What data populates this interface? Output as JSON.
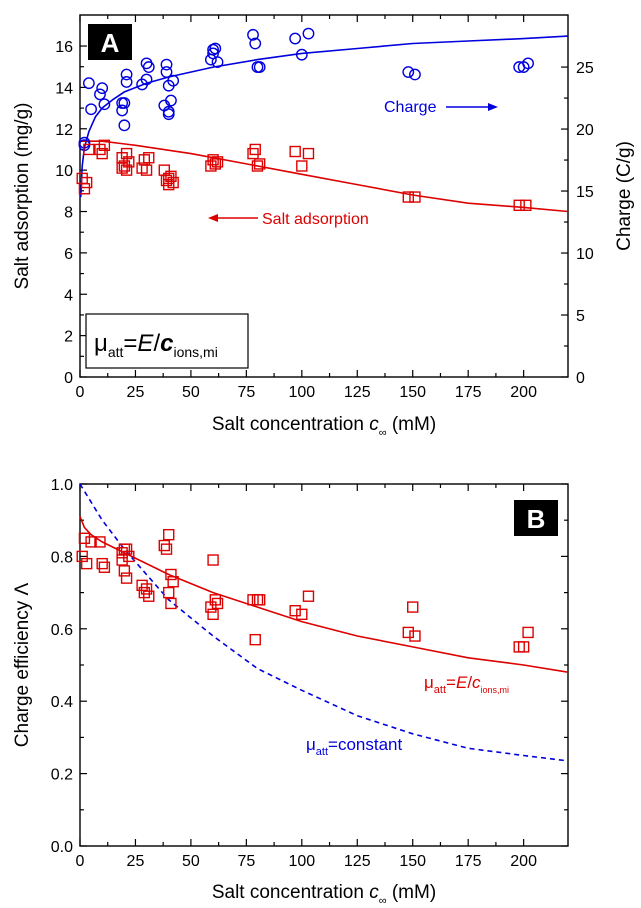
{
  "chart_data": [
    {
      "type": "scatter",
      "panel": "A",
      "xlabel": "Salt concentration c∞ (mM)",
      "ylabel": "Salt adsorption (mg/g)",
      "y2label": "Charge (C/g)",
      "xlim": [
        0,
        220
      ],
      "ylim": [
        0,
        17.5
      ],
      "y2lim": [
        0,
        29.2
      ],
      "xticks": [
        0,
        25,
        50,
        75,
        100,
        125,
        150,
        175,
        200
      ],
      "yticks": [
        0,
        2,
        4,
        6,
        8,
        10,
        12,
        14,
        16
      ],
      "y2ticks": [
        0,
        5,
        10,
        15,
        20,
        25
      ],
      "grid": false,
      "series": [
        {
          "name": "Charge",
          "axis": "right",
          "marker": "circle",
          "color": "#0000dd",
          "points": [
            [
              2,
              18.7
            ],
            [
              2,
              18.9
            ],
            [
              4,
              23.7
            ],
            [
              5,
              21.6
            ],
            [
              9,
              22.8
            ],
            [
              10,
              23.3
            ],
            [
              11,
              22.0
            ],
            [
              19,
              21.5
            ],
            [
              19,
              22.1
            ],
            [
              20,
              22.1
            ],
            [
              20,
              20.3
            ],
            [
              21,
              23.8
            ],
            [
              21,
              24.4
            ],
            [
              28,
              23.6
            ],
            [
              30,
              24.0
            ],
            [
              30,
              25.3
            ],
            [
              31,
              25.0
            ],
            [
              38,
              21.9
            ],
            [
              39,
              25.2
            ],
            [
              39,
              24.6
            ],
            [
              40,
              23.5
            ],
            [
              40,
              21.4
            ],
            [
              40,
              21.2
            ],
            [
              41,
              22.3
            ],
            [
              42,
              23.9
            ],
            [
              59,
              25.6
            ],
            [
              60,
              26.1
            ],
            [
              60,
              26.4
            ],
            [
              61,
              26.5
            ],
            [
              62,
              25.4
            ],
            [
              78,
              27.6
            ],
            [
              79,
              26.9
            ],
            [
              80,
              25.0
            ],
            [
              81,
              25.0
            ],
            [
              97,
              27.3
            ],
            [
              100,
              26.0
            ],
            [
              103,
              27.7
            ],
            [
              148,
              24.6
            ],
            [
              151,
              24.4
            ],
            [
              198,
              25.0
            ],
            [
              200,
              25.0
            ],
            [
              202,
              25.3
            ]
          ]
        },
        {
          "name": "Salt adsorption",
          "axis": "left",
          "marker": "square",
          "color": "#dd0000",
          "points": [
            [
              1,
              9.6
            ],
            [
              2,
              9.1
            ],
            [
              3,
              9.4
            ],
            [
              4,
              11.0
            ],
            [
              9,
              11.0
            ],
            [
              10,
              10.8
            ],
            [
              11,
              11.2
            ],
            [
              19,
              10.6
            ],
            [
              19,
              10.1
            ],
            [
              20,
              10.2
            ],
            [
              21,
              10.8
            ],
            [
              21,
              10.0
            ],
            [
              22,
              10.4
            ],
            [
              28,
              10.1
            ],
            [
              29,
              10.5
            ],
            [
              30,
              10.0
            ],
            [
              31,
              10.6
            ],
            [
              38,
              10.0
            ],
            [
              39,
              9.5
            ],
            [
              40,
              9.3
            ],
            [
              40,
              9.6
            ],
            [
              41,
              9.7
            ],
            [
              42,
              9.4
            ],
            [
              59,
              10.2
            ],
            [
              60,
              10.5
            ],
            [
              61,
              10.3
            ],
            [
              62,
              10.4
            ],
            [
              78,
              10.8
            ],
            [
              79,
              11.0
            ],
            [
              80,
              10.2
            ],
            [
              81,
              10.3
            ],
            [
              97,
              10.9
            ],
            [
              100,
              10.2
            ],
            [
              103,
              10.8
            ],
            [
              148,
              8.7
            ],
            [
              151,
              8.7
            ],
            [
              198,
              8.3
            ],
            [
              201,
              8.3
            ]
          ]
        }
      ],
      "fits": [
        {
          "name": "Charge fit",
          "axis": "right",
          "color": "#0000dd",
          "style": "solid",
          "points": [
            [
              0.3,
              14.5
            ],
            [
              1,
              17.0
            ],
            [
              2,
              18.5
            ],
            [
              4,
              19.8
            ],
            [
              7,
              21.0
            ],
            [
              10,
              21.7
            ],
            [
              15,
              22.4
            ],
            [
              20,
              23.0
            ],
            [
              30,
              23.7
            ],
            [
              40,
              24.2
            ],
            [
              60,
              25.0
            ],
            [
              80,
              25.6
            ],
            [
              100,
              26.1
            ],
            [
              125,
              26.5
            ],
            [
              150,
              26.9
            ],
            [
              175,
              27.1
            ],
            [
              200,
              27.3
            ],
            [
              220,
              27.5
            ]
          ]
        },
        {
          "name": "Salt adsorption fit",
          "axis": "left",
          "color": "#dd0000",
          "style": "solid",
          "points": [
            [
              0,
              11.4
            ],
            [
              10,
              11.4
            ],
            [
              25,
              11.2
            ],
            [
              50,
              10.8
            ],
            [
              75,
              10.3
            ],
            [
              100,
              9.8
            ],
            [
              125,
              9.3
            ],
            [
              150,
              8.8
            ],
            [
              175,
              8.4
            ],
            [
              200,
              8.2
            ],
            [
              220,
              8.0
            ]
          ]
        }
      ],
      "annotations": {
        "panel_label": "A",
        "charge_label": "Charge",
        "salt_label": "Salt adsorption",
        "model_mu": "μ",
        "model_sub": "att",
        "model_eq": "=",
        "model_E": "E",
        "model_slash": "/",
        "model_c": "c",
        "model_csub": "ions,mi"
      }
    },
    {
      "type": "scatter",
      "panel": "B",
      "xlabel": "Salt concentration c∞ (mM)",
      "ylabel": "Charge efficiency Λ",
      "xlim": [
        0,
        220
      ],
      "ylim": [
        0,
        1.0
      ],
      "xticks": [
        0,
        25,
        50,
        75,
        100,
        125,
        150,
        175,
        200
      ],
      "yticks": [
        0.0,
        0.2,
        0.4,
        0.6,
        0.8,
        1.0
      ],
      "grid": false,
      "series": [
        {
          "name": "Charge efficiency",
          "marker": "square",
          "color": "#dd0000",
          "points": [
            [
              1,
              0.8
            ],
            [
              2,
              0.85
            ],
            [
              3,
              0.78
            ],
            [
              5,
              0.84
            ],
            [
              9,
              0.84
            ],
            [
              10,
              0.78
            ],
            [
              11,
              0.77
            ],
            [
              19,
              0.81
            ],
            [
              19,
              0.79
            ],
            [
              20,
              0.82
            ],
            [
              20,
              0.76
            ],
            [
              21,
              0.74
            ],
            [
              21,
              0.82
            ],
            [
              22,
              0.8
            ],
            [
              28,
              0.72
            ],
            [
              29,
              0.7
            ],
            [
              30,
              0.71
            ],
            [
              31,
              0.69
            ],
            [
              38,
              0.83
            ],
            [
              39,
              0.82
            ],
            [
              40,
              0.86
            ],
            [
              40,
              0.7
            ],
            [
              41,
              0.67
            ],
            [
              41,
              0.75
            ],
            [
              42,
              0.73
            ],
            [
              59,
              0.66
            ],
            [
              60,
              0.64
            ],
            [
              60,
              0.79
            ],
            [
              61,
              0.68
            ],
            [
              62,
              0.67
            ],
            [
              78,
              0.68
            ],
            [
              79,
              0.57
            ],
            [
              80,
              0.68
            ],
            [
              81,
              0.68
            ],
            [
              97,
              0.65
            ],
            [
              100,
              0.64
            ],
            [
              103,
              0.69
            ],
            [
              148,
              0.59
            ],
            [
              150,
              0.66
            ],
            [
              151,
              0.58
            ],
            [
              198,
              0.55
            ],
            [
              200,
              0.55
            ],
            [
              202,
              0.59
            ]
          ]
        }
      ],
      "fits": [
        {
          "name": "μatt=E/cions,mi",
          "color": "#dd0000",
          "style": "solid",
          "points": [
            [
              0,
              0.91
            ],
            [
              2,
              0.88
            ],
            [
              5,
              0.86
            ],
            [
              10,
              0.84
            ],
            [
              20,
              0.81
            ],
            [
              30,
              0.78
            ],
            [
              40,
              0.75
            ],
            [
              60,
              0.7
            ],
            [
              80,
              0.66
            ],
            [
              100,
              0.62
            ],
            [
              125,
              0.58
            ],
            [
              150,
              0.55
            ],
            [
              175,
              0.52
            ],
            [
              200,
              0.5
            ],
            [
              220,
              0.48
            ]
          ]
        },
        {
          "name": "μatt=constant",
          "color": "#0000dd",
          "style": "dashed",
          "points": [
            [
              0,
              1.0
            ],
            [
              5,
              0.95
            ],
            [
              10,
              0.9
            ],
            [
              20,
              0.82
            ],
            [
              30,
              0.75
            ],
            [
              40,
              0.68
            ],
            [
              60,
              0.58
            ],
            [
              80,
              0.49
            ],
            [
              100,
              0.43
            ],
            [
              125,
              0.36
            ],
            [
              150,
              0.31
            ],
            [
              175,
              0.27
            ],
            [
              200,
              0.25
            ],
            [
              220,
              0.235
            ]
          ]
        }
      ],
      "annotations": {
        "panel_label": "B",
        "fit1_mu": "μ",
        "fit1_sub": "att",
        "fit1_eq": "=",
        "fit1_E": "E",
        "fit1_slash": "/",
        "fit1_c": "c",
        "fit1_csub": "ions,mi",
        "fit2_mu": "μ",
        "fit2_sub": "att",
        "fit2_rest": "=constant"
      }
    }
  ],
  "colors": {
    "charge": "#0000dd",
    "salt": "#dd0000",
    "axis": "#000000"
  }
}
